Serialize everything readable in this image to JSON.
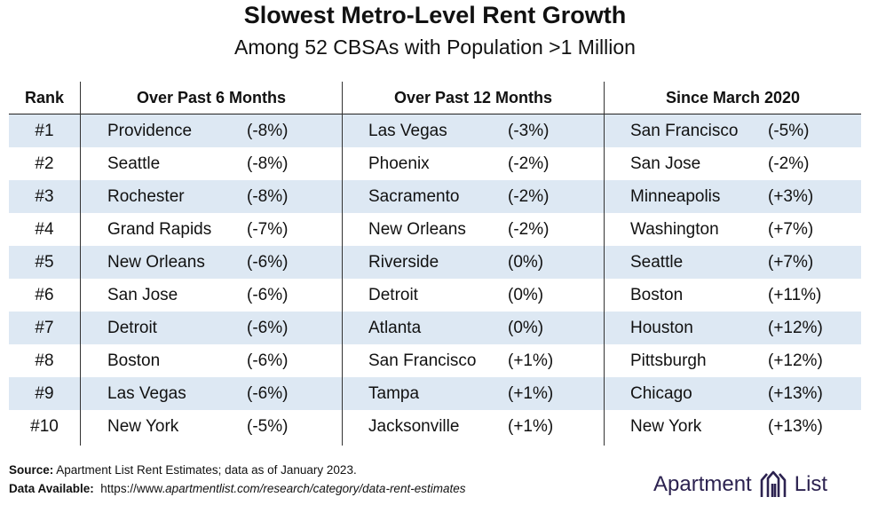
{
  "chart_data": {
    "type": "table",
    "title": "Slowest Metro-Level Rent Growth",
    "subtitle": "Among 52 CBSAs with Population >1 Million",
    "columns": [
      "Rank",
      "Over Past 6 Months",
      "Over Past 12 Months",
      "Since March 2020"
    ],
    "rows": [
      {
        "rank": "#1",
        "six": {
          "city": "Providence",
          "change": "(-8%)"
        },
        "twelve": {
          "city": "Las Vegas",
          "change": "(-3%)"
        },
        "since": {
          "city": "San Francisco",
          "change": "(-5%)"
        }
      },
      {
        "rank": "#2",
        "six": {
          "city": "Seattle",
          "change": "(-8%)"
        },
        "twelve": {
          "city": "Phoenix",
          "change": "(-2%)"
        },
        "since": {
          "city": "San Jose",
          "change": "(-2%)"
        }
      },
      {
        "rank": "#3",
        "six": {
          "city": "Rochester",
          "change": "(-8%)"
        },
        "twelve": {
          "city": "Sacramento",
          "change": "(-2%)"
        },
        "since": {
          "city": "Minneapolis",
          "change": "(+3%)"
        }
      },
      {
        "rank": "#4",
        "six": {
          "city": "Grand Rapids",
          "change": "(-7%)"
        },
        "twelve": {
          "city": "New Orleans",
          "change": "(-2%)"
        },
        "since": {
          "city": "Washington",
          "change": "(+7%)"
        }
      },
      {
        "rank": "#5",
        "six": {
          "city": "New Orleans",
          "change": "(-6%)"
        },
        "twelve": {
          "city": "Riverside",
          "change": "(0%)"
        },
        "since": {
          "city": "Seattle",
          "change": "(+7%)"
        }
      },
      {
        "rank": "#6",
        "six": {
          "city": "San Jose",
          "change": "(-6%)"
        },
        "twelve": {
          "city": "Detroit",
          "change": "(0%)"
        },
        "since": {
          "city": "Boston",
          "change": "(+11%)"
        }
      },
      {
        "rank": "#7",
        "six": {
          "city": "Detroit",
          "change": "(-6%)"
        },
        "twelve": {
          "city": "Atlanta",
          "change": "(0%)"
        },
        "since": {
          "city": "Houston",
          "change": "(+12%)"
        }
      },
      {
        "rank": "#8",
        "six": {
          "city": "Boston",
          "change": "(-6%)"
        },
        "twelve": {
          "city": "San Francisco",
          "change": "(+1%)"
        },
        "since": {
          "city": "Pittsburgh",
          "change": "(+12%)"
        }
      },
      {
        "rank": "#9",
        "six": {
          "city": "Las Vegas",
          "change": "(-6%)"
        },
        "twelve": {
          "city": "Tampa",
          "change": "(+1%)"
        },
        "since": {
          "city": "Chicago",
          "change": "(+13%)"
        }
      },
      {
        "rank": "#10",
        "six": {
          "city": "New York",
          "change": "(-5%)"
        },
        "twelve": {
          "city": "Jacksonville",
          "change": "(+1%)"
        },
        "since": {
          "city": "New York",
          "change": "(+13%)"
        }
      }
    ],
    "row_shading": "alternating",
    "shade_color": "#dde8f3"
  },
  "footer": {
    "source_label": "Source:",
    "source_text": " Apartment List Rent Estimates; data as of January 2023.",
    "data_label": "Data Available:",
    "data_prefix": "  https://www.",
    "data_italic": "apartmentlist.com/research/category/data-rent-estimates"
  },
  "brand": {
    "left": "Apartment",
    "right": "List",
    "logo_icon": "apartment-list-logo-icon",
    "color": "#2c2250"
  }
}
